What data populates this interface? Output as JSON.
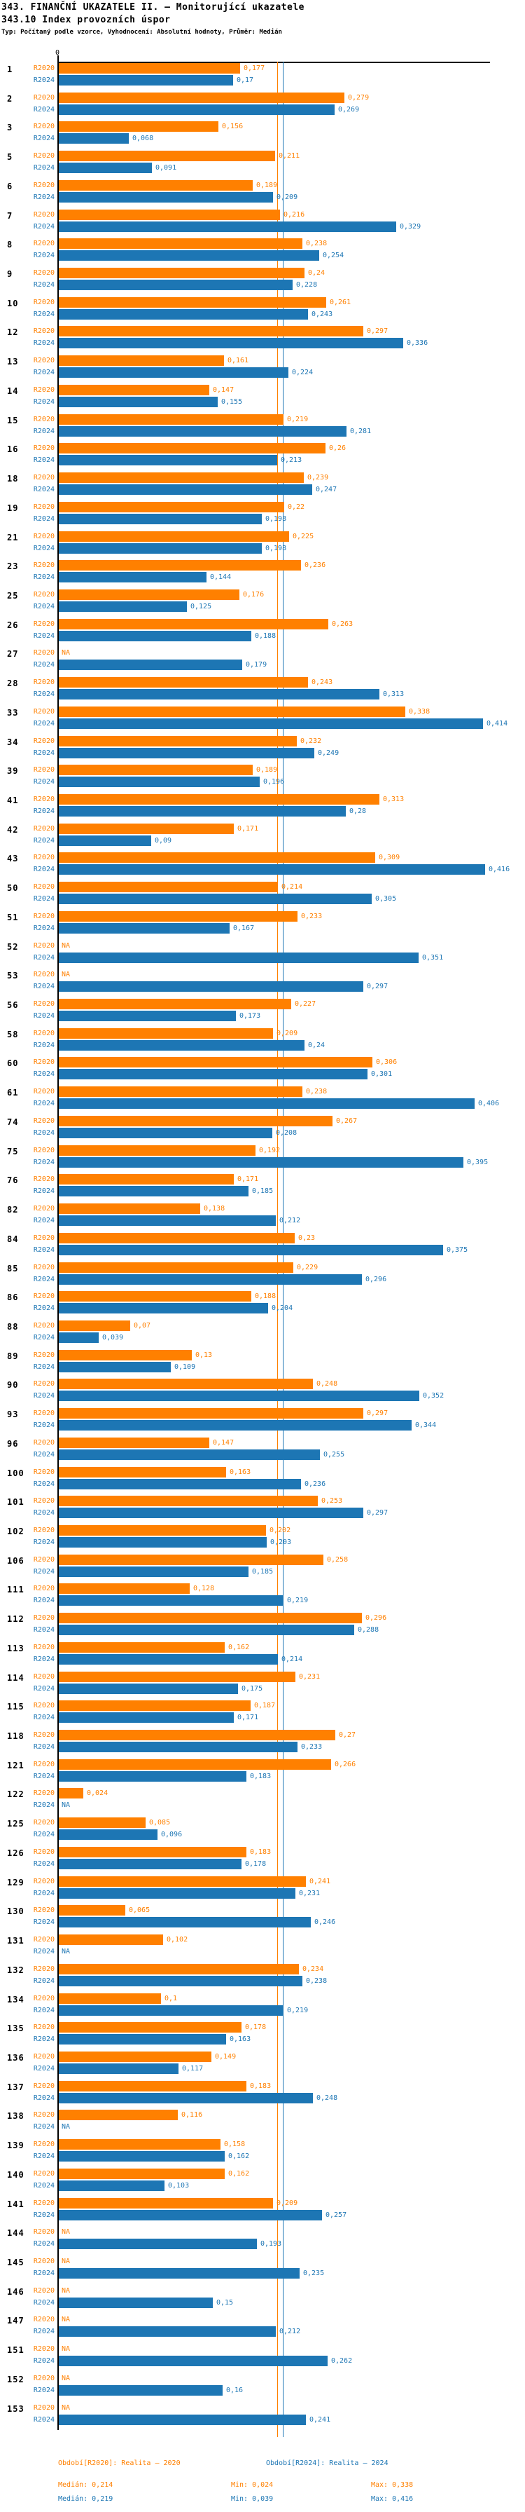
{
  "header": {
    "title_line1": "343. FINANČNÍ UKAZATELE II. – Monitorující ukazatele",
    "title_line2": "343.10 Index provozních úspor",
    "type_line": "Typ: Počítaný podle vzorce, Vyhodnocení: Absolutní hodnoty, Průměr: Medián"
  },
  "colors": {
    "r2020": "#ff8000",
    "r2024": "#1d76b4",
    "axis": "#000000"
  },
  "chart_data": {
    "type": "bar",
    "orientation": "horizontal",
    "axis_zero_label": "0",
    "series_labels": {
      "r2020": "R2020",
      "r2024": "R2024"
    },
    "na_text": "NA",
    "xlim": [
      0,
      0.45
    ],
    "grid": false,
    "median_lines": {
      "r2020": 0.214,
      "r2024": 0.219
    },
    "rows": [
      {
        "id": "1",
        "r2020": "0,177",
        "r2024": "0,17"
      },
      {
        "id": "2",
        "r2020": "0,279",
        "r2024": "0,269"
      },
      {
        "id": "3",
        "r2020": "0,156",
        "r2024": "0,068"
      },
      {
        "id": "5",
        "r2020": "0,211",
        "r2024": "0,091"
      },
      {
        "id": "6",
        "r2020": "0,189",
        "r2024": "0,209"
      },
      {
        "id": "7",
        "r2020": "0,216",
        "r2024": "0,329"
      },
      {
        "id": "8",
        "r2020": "0,238",
        "r2024": "0,254"
      },
      {
        "id": "9",
        "r2020": "0,24",
        "r2024": "0,228"
      },
      {
        "id": "10",
        "r2020": "0,261",
        "r2024": "0,243"
      },
      {
        "id": "12",
        "r2020": "0,297",
        "r2024": "0,336"
      },
      {
        "id": "13",
        "r2020": "0,161",
        "r2024": "0,224"
      },
      {
        "id": "14",
        "r2020": "0,147",
        "r2024": "0,155"
      },
      {
        "id": "15",
        "r2020": "0,219",
        "r2024": "0,281"
      },
      {
        "id": "16",
        "r2020": "0,26",
        "r2024": "0,213"
      },
      {
        "id": "18",
        "r2020": "0,239",
        "r2024": "0,247"
      },
      {
        "id": "19",
        "r2020": "0,22",
        "r2024": "0,198"
      },
      {
        "id": "21",
        "r2020": "0,225",
        "r2024": "0,198"
      },
      {
        "id": "23",
        "r2020": "0,236",
        "r2024": "0,144"
      },
      {
        "id": "25",
        "r2020": "0,176",
        "r2024": "0,125"
      },
      {
        "id": "26",
        "r2020": "0,263",
        "r2024": "0,188"
      },
      {
        "id": "27",
        "r2020": "NA",
        "r2024": "0,179"
      },
      {
        "id": "28",
        "r2020": "0,243",
        "r2024": "0,313"
      },
      {
        "id": "33",
        "r2020": "0,338",
        "r2024": "0,414"
      },
      {
        "id": "34",
        "r2020": "0,232",
        "r2024": "0,249"
      },
      {
        "id": "39",
        "r2020": "0,189",
        "r2024": "0,196"
      },
      {
        "id": "41",
        "r2020": "0,313",
        "r2024": "0,28"
      },
      {
        "id": "42",
        "r2020": "0,171",
        "r2024": "0,09"
      },
      {
        "id": "43",
        "r2020": "0,309",
        "r2024": "0,416"
      },
      {
        "id": "50",
        "r2020": "0,214",
        "r2024": "0,305"
      },
      {
        "id": "51",
        "r2020": "0,233",
        "r2024": "0,167"
      },
      {
        "id": "52",
        "r2020": "NA",
        "r2024": "0,351"
      },
      {
        "id": "53",
        "r2020": "NA",
        "r2024": "0,297"
      },
      {
        "id": "56",
        "r2020": "0,227",
        "r2024": "0,173"
      },
      {
        "id": "58",
        "r2020": "0,209",
        "r2024": "0,24"
      },
      {
        "id": "60",
        "r2020": "0,306",
        "r2024": "0,301"
      },
      {
        "id": "61",
        "r2020": "0,238",
        "r2024": "0,406"
      },
      {
        "id": "74",
        "r2020": "0,267",
        "r2024": "0,208"
      },
      {
        "id": "75",
        "r2020": "0,192",
        "r2024": "0,395"
      },
      {
        "id": "76",
        "r2020": "0,171",
        "r2024": "0,185"
      },
      {
        "id": "82",
        "r2020": "0,138",
        "r2024": "0,212"
      },
      {
        "id": "84",
        "r2020": "0,23",
        "r2024": "0,375"
      },
      {
        "id": "85",
        "r2020": "0,229",
        "r2024": "0,296"
      },
      {
        "id": "86",
        "r2020": "0,188",
        "r2024": "0,204"
      },
      {
        "id": "88",
        "r2020": "0,07",
        "r2024": "0,039"
      },
      {
        "id": "89",
        "r2020": "0,13",
        "r2024": "0,109"
      },
      {
        "id": "90",
        "r2020": "0,248",
        "r2024": "0,352"
      },
      {
        "id": "93",
        "r2020": "0,297",
        "r2024": "0,344"
      },
      {
        "id": "96",
        "r2020": "0,147",
        "r2024": "0,255"
      },
      {
        "id": "100",
        "r2020": "0,163",
        "r2024": "0,236"
      },
      {
        "id": "101",
        "r2020": "0,253",
        "r2024": "0,297"
      },
      {
        "id": "102",
        "r2020": "0,202",
        "r2024": "0,203"
      },
      {
        "id": "106",
        "r2020": "0,258",
        "r2024": "0,185"
      },
      {
        "id": "111",
        "r2020": "0,128",
        "r2024": "0,219"
      },
      {
        "id": "112",
        "r2020": "0,296",
        "r2024": "0,288"
      },
      {
        "id": "113",
        "r2020": "0,162",
        "r2024": "0,214"
      },
      {
        "id": "114",
        "r2020": "0,231",
        "r2024": "0,175"
      },
      {
        "id": "115",
        "r2020": "0,187",
        "r2024": "0,171"
      },
      {
        "id": "118",
        "r2020": "0,27",
        "r2024": "0,233"
      },
      {
        "id": "121",
        "r2020": "0,266",
        "r2024": "0,183"
      },
      {
        "id": "122",
        "r2020": "0,024",
        "r2024": "NA"
      },
      {
        "id": "125",
        "r2020": "0,085",
        "r2024": "0,096"
      },
      {
        "id": "126",
        "r2020": "0,183",
        "r2024": "0,178"
      },
      {
        "id": "129",
        "r2020": "0,241",
        "r2024": "0,231"
      },
      {
        "id": "130",
        "r2020": "0,065",
        "r2024": "0,246"
      },
      {
        "id": "131",
        "r2020": "0,102",
        "r2024": "NA"
      },
      {
        "id": "132",
        "r2020": "0,234",
        "r2024": "0,238"
      },
      {
        "id": "134",
        "r2020": "0,1",
        "r2024": "0,219"
      },
      {
        "id": "135",
        "r2020": "0,178",
        "r2024": "0,163"
      },
      {
        "id": "136",
        "r2020": "0,149",
        "r2024": "0,117"
      },
      {
        "id": "137",
        "r2020": "0,183",
        "r2024": "0,248"
      },
      {
        "id": "138",
        "r2020": "0,116",
        "r2024": "NA"
      },
      {
        "id": "139",
        "r2020": "0,158",
        "r2024": "0,162"
      },
      {
        "id": "140",
        "r2020": "0,162",
        "r2024": "0,103"
      },
      {
        "id": "141",
        "r2020": "0,209",
        "r2024": "0,257"
      },
      {
        "id": "144",
        "r2020": "NA",
        "r2024": "0,193"
      },
      {
        "id": "145",
        "r2020": "NA",
        "r2024": "0,235"
      },
      {
        "id": "146",
        "r2020": "NA",
        "r2024": "0,15"
      },
      {
        "id": "147",
        "r2020": "NA",
        "r2024": "0,212"
      },
      {
        "id": "151",
        "r2020": "NA",
        "r2024": "0,262"
      },
      {
        "id": "152",
        "r2020": "NA",
        "r2024": "0,16"
      },
      {
        "id": "153",
        "r2020": "NA",
        "r2024": "0,241"
      }
    ]
  },
  "legend": {
    "r2020_label": "Období[R2020]: Realita – 2020",
    "r2024_label": "Období[R2024]: Realita – 2024"
  },
  "stats": {
    "r2020": {
      "median": "Medián: 0,214",
      "min": "Min: 0,024",
      "max": "Max: 0,338"
    },
    "r2024": {
      "median": "Medián: 0,219",
      "min": "Min: 0,039",
      "max": "Max: 0,416"
    }
  }
}
